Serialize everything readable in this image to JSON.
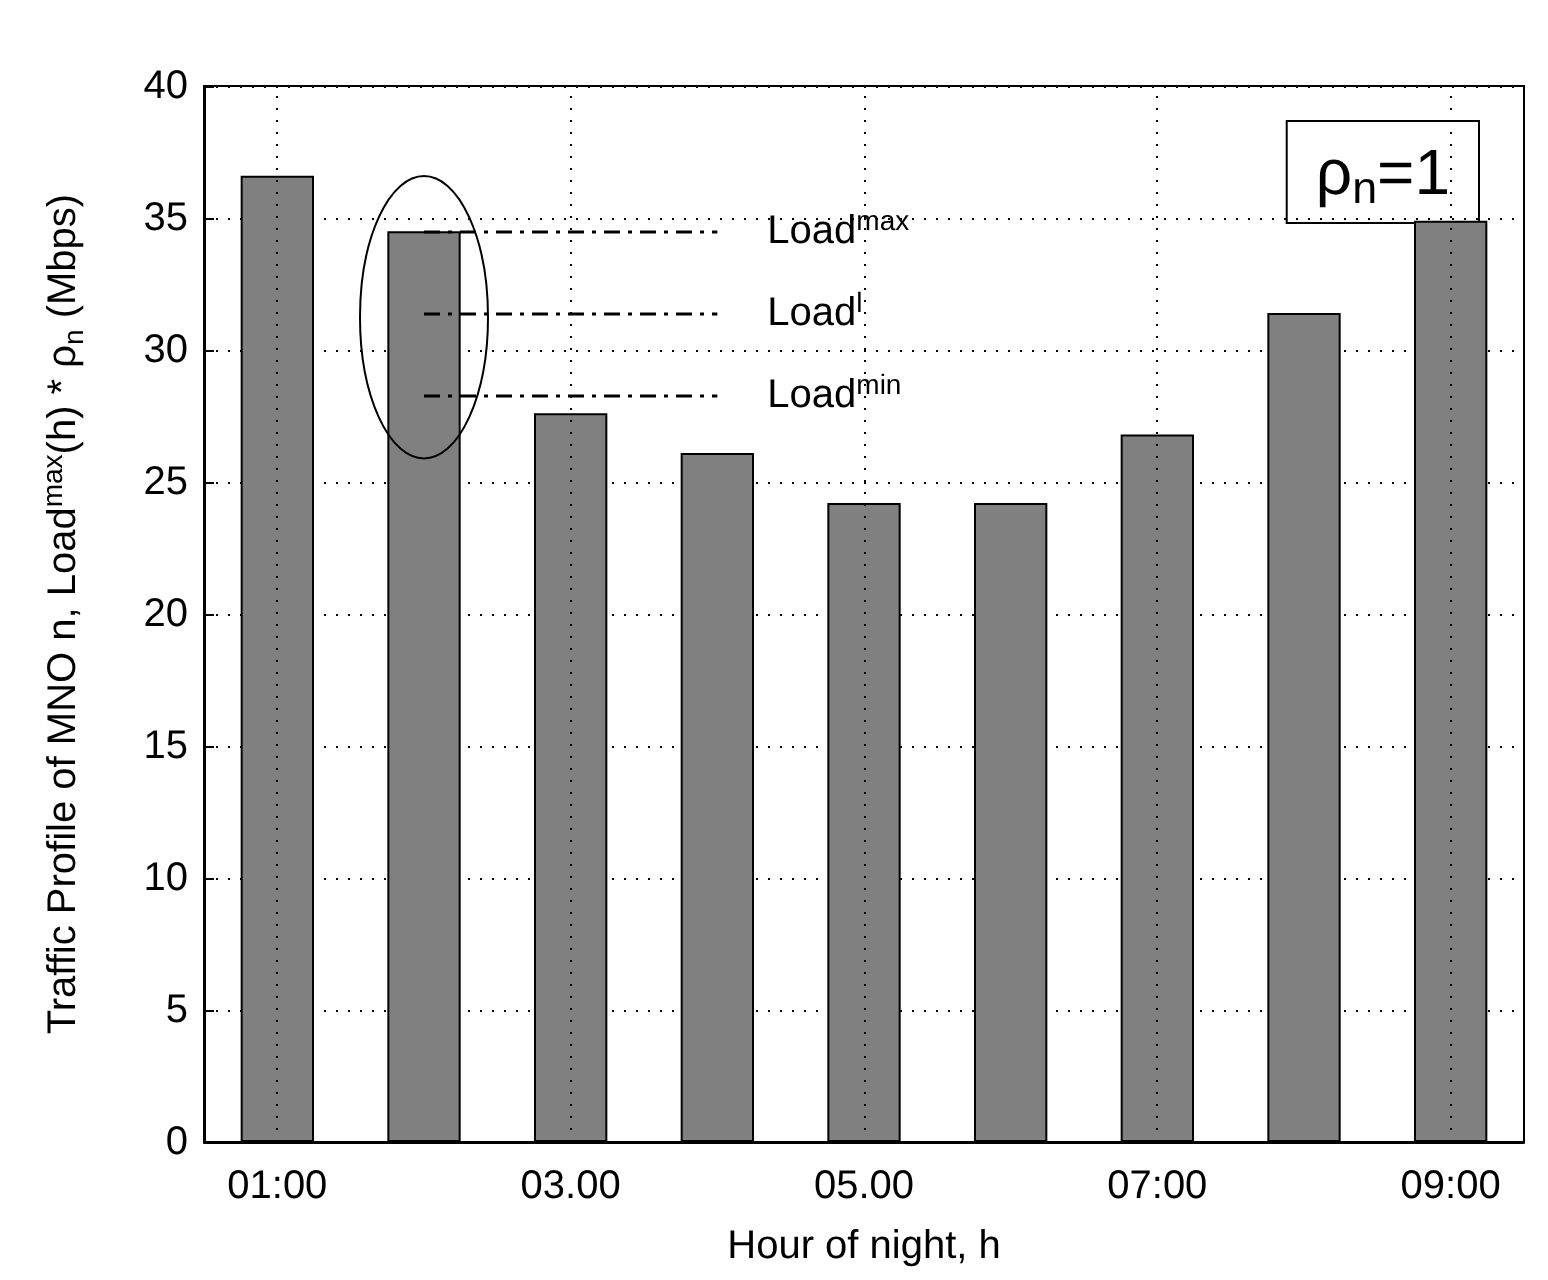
{
  "chart_data": {
    "type": "bar",
    "xlabel": "Hour of night, h",
    "ylabel": "Traffic Profile of MNO n, Load$^{max}$(h) * ρ$_{n}$ (Mbps)",
    "categories": [
      "01:00",
      null,
      "03.00",
      null,
      "05.00",
      null,
      "07:00",
      null,
      "09:00"
    ],
    "values": [
      36.6,
      34.5,
      27.6,
      26.1,
      24.2,
      24.2,
      26.8,
      31.4,
      34.9
    ],
    "color": "#808080",
    "ylim": [
      0,
      40
    ],
    "yticks": [
      0,
      5,
      10,
      15,
      20,
      25,
      30,
      35,
      40
    ],
    "grid": true,
    "ref_lines": [
      {
        "axis": "y",
        "value": 34.5,
        "label": "Load$^{max}$",
        "line_style": "dashed",
        "color": "#000000"
      },
      {
        "axis": "y",
        "value": 31.4,
        "label": "Load$^{l}$",
        "line_style": "dashed",
        "color": "#000000"
      },
      {
        "axis": "y",
        "value": 28.3,
        "label": "Load$^{min}$",
        "line_style": "dashed",
        "color": "#000000"
      }
    ],
    "annotations": [
      "ρ$_{n}$=1"
    ]
  }
}
